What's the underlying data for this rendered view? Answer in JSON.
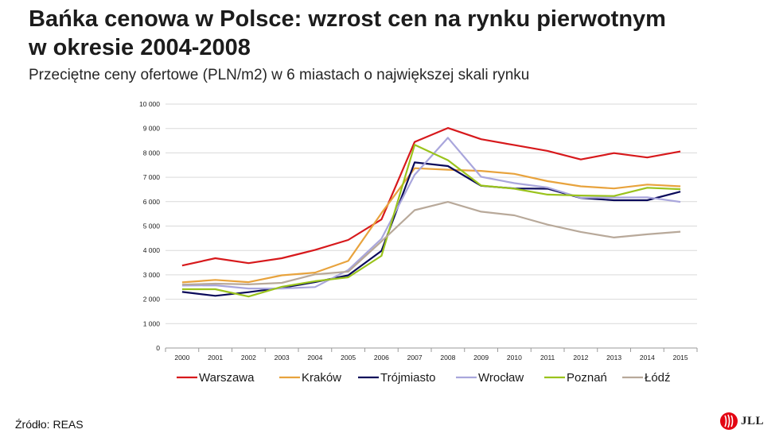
{
  "header": {
    "title_line1": "Bańka cenowa w Polsce: wzrost cen na rynku pierwotnym",
    "title_line2": "w okresie 2004-2008",
    "subtitle": "Przeciętne ceny ofertowe (PLN/m2)  w 6 miastach o największej skali rynku"
  },
  "footer": {
    "source": "Źródło: REAS",
    "logo_text": "JLL",
    "logo_color": "#e30613"
  },
  "chart_data": {
    "type": "line",
    "title": "",
    "xlabel": "",
    "ylabel": "",
    "categories": [
      "2000",
      "2001",
      "2002",
      "2003",
      "2004",
      "2005",
      "2006",
      "2007",
      "2008",
      "2009",
      "2010",
      "2011",
      "2012",
      "2013",
      "2014",
      "2015"
    ],
    "ylim": [
      0,
      10000
    ],
    "yticks": [
      0,
      1000,
      2000,
      3000,
      4000,
      5000,
      6000,
      7000,
      8000,
      9000,
      10000
    ],
    "ytick_labels": [
      "0",
      "1 000",
      "2 000",
      "3 000",
      "4 000",
      "5 000",
      "6 000",
      "7 000",
      "8 000",
      "9 000",
      "10 000"
    ],
    "grid": true,
    "legend_position": "bottom",
    "series": [
      {
        "name": "Warszawa",
        "color": "#d7191c",
        "values": [
          3380,
          3680,
          3480,
          3680,
          4020,
          4430,
          5270,
          8450,
          9020,
          8560,
          8320,
          8080,
          7730,
          7990,
          7810,
          8060
        ]
      },
      {
        "name": "Kraków",
        "color": "#e8a33d",
        "values": [
          2690,
          2790,
          2700,
          2980,
          3090,
          3570,
          5530,
          7370,
          7310,
          7260,
          7140,
          6840,
          6630,
          6540,
          6700,
          6630
        ]
      },
      {
        "name": "Trójmiasto",
        "color": "#0a0a5a",
        "values": [
          2300,
          2140,
          2290,
          2470,
          2700,
          2980,
          3980,
          7610,
          7460,
          6650,
          6540,
          6530,
          6150,
          6060,
          6060,
          6410
        ]
      },
      {
        "name": "Wrocław",
        "color": "#a9a6dc",
        "values": [
          2560,
          2570,
          2440,
          2440,
          2500,
          3200,
          4480,
          7100,
          8620,
          7020,
          6760,
          6580,
          6160,
          6170,
          6180,
          5990
        ]
      },
      {
        "name": "Poznań",
        "color": "#9ac31c",
        "values": [
          2410,
          2410,
          2110,
          2510,
          2740,
          2900,
          3780,
          8330,
          7700,
          6660,
          6530,
          6290,
          6250,
          6230,
          6570,
          6510
        ]
      },
      {
        "name": "Łódź",
        "color": "#b8a99a",
        "values": [
          2600,
          2640,
          2610,
          2670,
          3020,
          3130,
          4370,
          5650,
          5990,
          5590,
          5440,
          5060,
          4760,
          4530,
          4660,
          4770
        ]
      }
    ]
  }
}
